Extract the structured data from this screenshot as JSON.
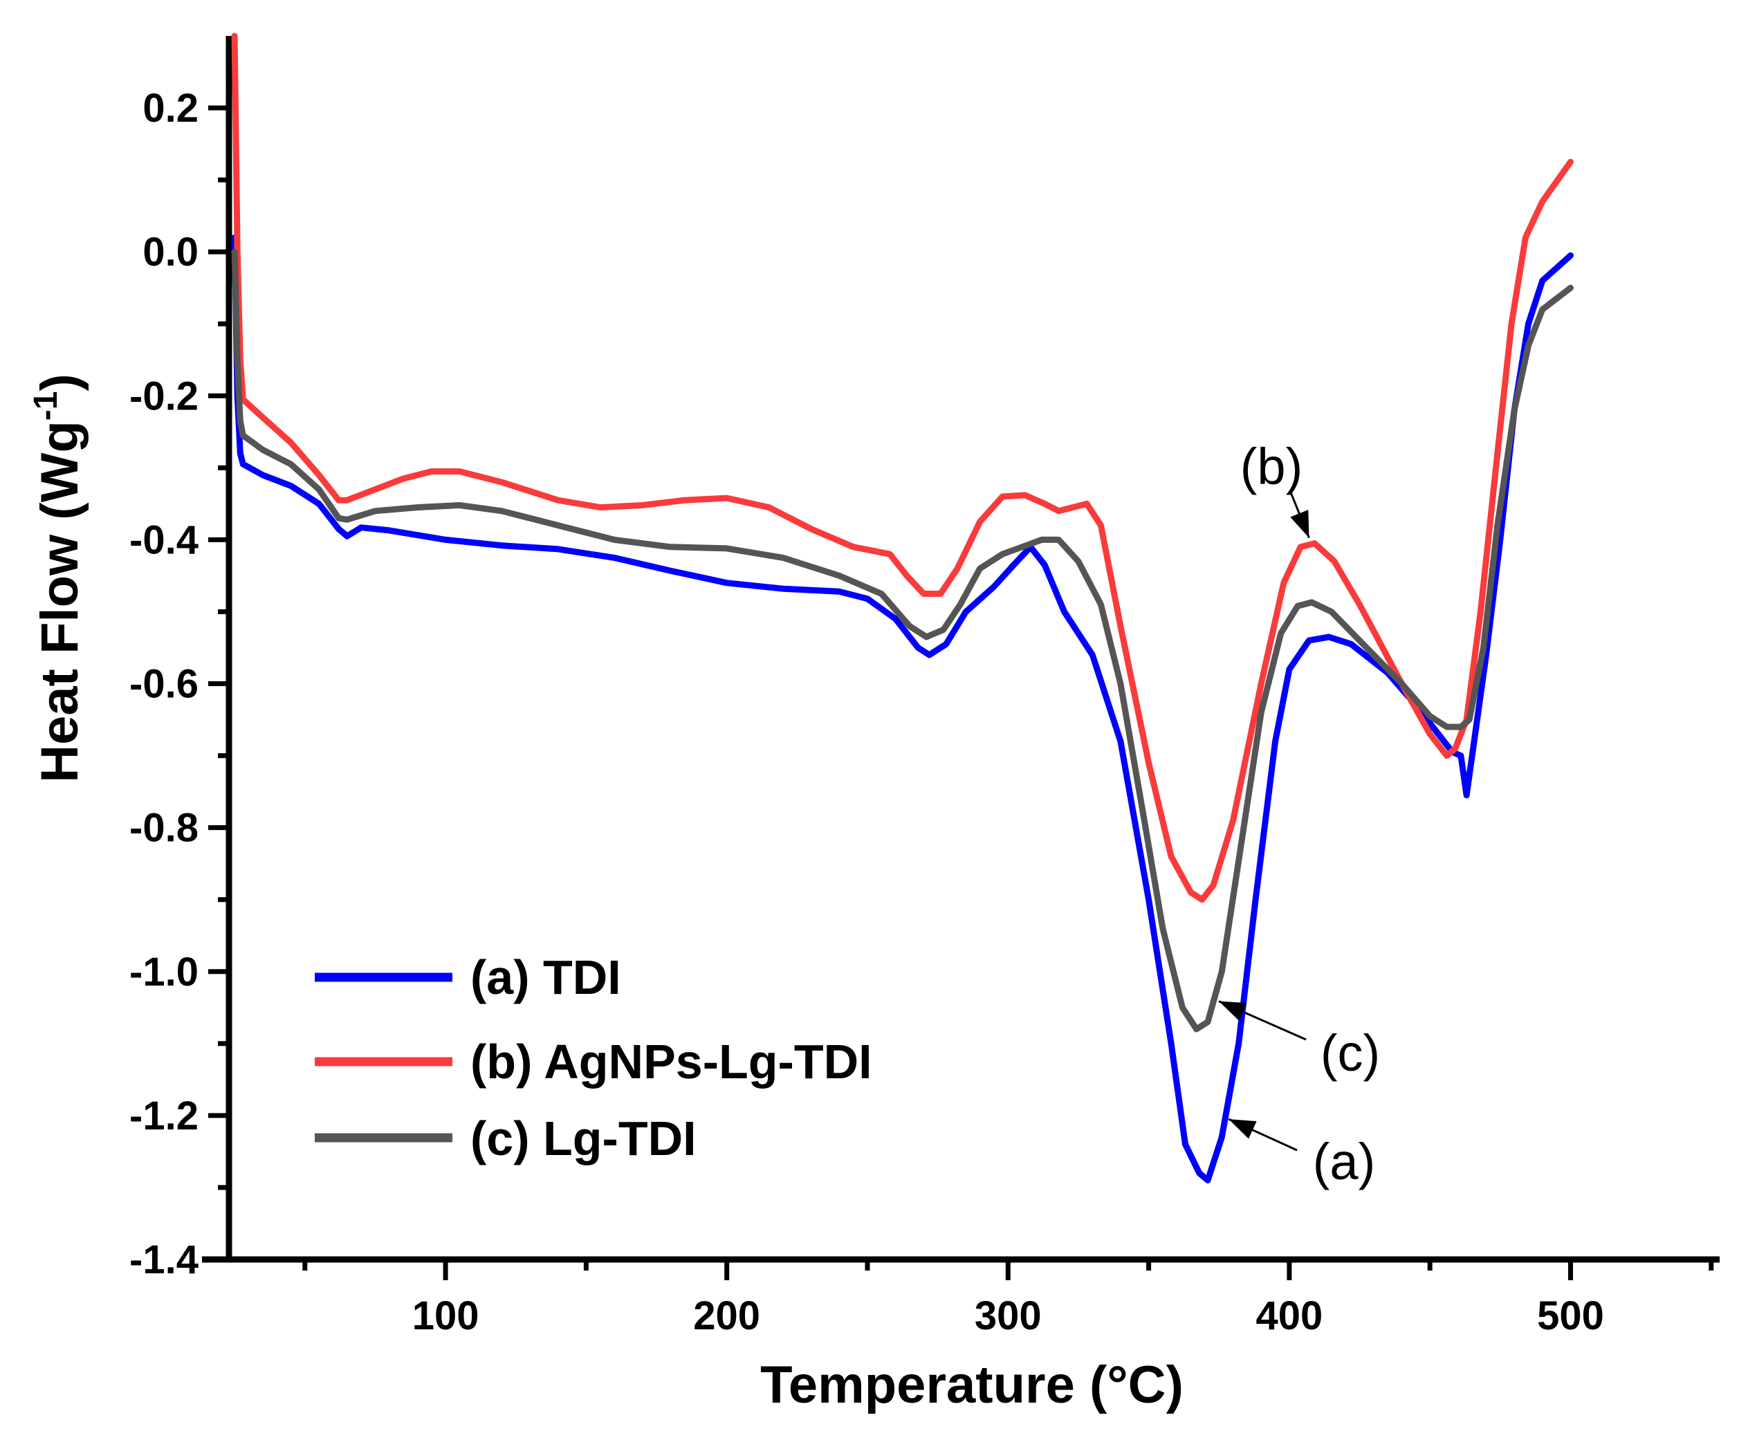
{
  "chart_data": {
    "type": "line",
    "title": "",
    "xlabel": "Temperature (°C)",
    "ylabel": "Heat Flow (Wg",
    "ylabel_sup": "-1",
    "ylabel_close": ")",
    "xlim": [
      23,
      553
    ],
    "ylim": [
      -1.4,
      0.3
    ],
    "x_ticks": [
      100,
      200,
      300,
      400,
      500
    ],
    "x_tick_labels": [
      "100",
      "200",
      "300",
      "400",
      "500"
    ],
    "y_ticks": [
      0.2,
      0.0,
      -0.2,
      -0.4,
      -0.6,
      -0.8,
      -1.0,
      -1.2,
      -1.4
    ],
    "y_tick_labels": [
      "0.2",
      "0.0",
      "-0.2",
      "-0.4",
      "-0.6",
      "-0.8",
      "-1.0",
      "-1.2",
      "-1.4"
    ],
    "grid": false,
    "legend_position": "bottom-left",
    "series": [
      {
        "name": "(a) TDI",
        "color": "#0000ff",
        "points": [
          [
            25,
            0.02
          ],
          [
            26,
            -0.2
          ],
          [
            27,
            -0.28
          ],
          [
            28,
            -0.295
          ],
          [
            35,
            -0.31
          ],
          [
            45,
            -0.325
          ],
          [
            55,
            -0.35
          ],
          [
            62,
            -0.385
          ],
          [
            65,
            -0.395
          ],
          [
            70,
            -0.383
          ],
          [
            80,
            -0.387
          ],
          [
            100,
            -0.4
          ],
          [
            120,
            -0.408
          ],
          [
            140,
            -0.413
          ],
          [
            160,
            -0.425
          ],
          [
            180,
            -0.443
          ],
          [
            200,
            -0.46
          ],
          [
            220,
            -0.468
          ],
          [
            240,
            -0.472
          ],
          [
            250,
            -0.482
          ],
          [
            260,
            -0.51
          ],
          [
            268,
            -0.55
          ],
          [
            272,
            -0.56
          ],
          [
            278,
            -0.545
          ],
          [
            285,
            -0.5
          ],
          [
            295,
            -0.465
          ],
          [
            302,
            -0.435
          ],
          [
            308,
            -0.41
          ],
          [
            313,
            -0.435
          ],
          [
            320,
            -0.5
          ],
          [
            330,
            -0.56
          ],
          [
            340,
            -0.68
          ],
          [
            350,
            -0.9
          ],
          [
            358,
            -1.1
          ],
          [
            363,
            -1.24
          ],
          [
            368,
            -1.28
          ],
          [
            371,
            -1.29
          ],
          [
            376,
            -1.23
          ],
          [
            382,
            -1.1
          ],
          [
            388,
            -0.9
          ],
          [
            395,
            -0.68
          ],
          [
            400,
            -0.58
          ],
          [
            407,
            -0.54
          ],
          [
            414,
            -0.535
          ],
          [
            422,
            -0.545
          ],
          [
            435,
            -0.585
          ],
          [
            445,
            -0.63
          ],
          [
            452,
            -0.665
          ],
          [
            458,
            -0.695
          ],
          [
            461,
            -0.7
          ],
          [
            463,
            -0.755
          ],
          [
            465,
            -0.7
          ],
          [
            470,
            -0.56
          ],
          [
            475,
            -0.4
          ],
          [
            480,
            -0.22
          ],
          [
            485,
            -0.1
          ],
          [
            490,
            -0.04
          ],
          [
            500,
            -0.005
          ]
        ]
      },
      {
        "name": "(b) AgNPs-Lg-TDI",
        "color": "#f93b3b",
        "points": [
          [
            25,
            0.3
          ],
          [
            26,
            0.0
          ],
          [
            27,
            -0.15
          ],
          [
            28,
            -0.205
          ],
          [
            35,
            -0.23
          ],
          [
            45,
            -0.265
          ],
          [
            55,
            -0.31
          ],
          [
            62,
            -0.345
          ],
          [
            65,
            -0.345
          ],
          [
            75,
            -0.33
          ],
          [
            85,
            -0.315
          ],
          [
            95,
            -0.305
          ],
          [
            105,
            -0.305
          ],
          [
            120,
            -0.32
          ],
          [
            140,
            -0.345
          ],
          [
            155,
            -0.355
          ],
          [
            170,
            -0.352
          ],
          [
            185,
            -0.345
          ],
          [
            200,
            -0.342
          ],
          [
            215,
            -0.355
          ],
          [
            230,
            -0.385
          ],
          [
            245,
            -0.41
          ],
          [
            258,
            -0.42
          ],
          [
            264,
            -0.45
          ],
          [
            270,
            -0.475
          ],
          [
            276,
            -0.475
          ],
          [
            282,
            -0.44
          ],
          [
            290,
            -0.375
          ],
          [
            298,
            -0.34
          ],
          [
            306,
            -0.338
          ],
          [
            313,
            -0.35
          ],
          [
            318,
            -0.36
          ],
          [
            323,
            -0.355
          ],
          [
            328,
            -0.35
          ],
          [
            333,
            -0.38
          ],
          [
            340,
            -0.52
          ],
          [
            350,
            -0.71
          ],
          [
            358,
            -0.84
          ],
          [
            365,
            -0.89
          ],
          [
            369,
            -0.9
          ],
          [
            373,
            -0.88
          ],
          [
            380,
            -0.79
          ],
          [
            390,
            -0.6
          ],
          [
            398,
            -0.46
          ],
          [
            404,
            -0.41
          ],
          [
            409,
            -0.405
          ],
          [
            416,
            -0.43
          ],
          [
            425,
            -0.49
          ],
          [
            440,
            -0.6
          ],
          [
            450,
            -0.67
          ],
          [
            456,
            -0.7
          ],
          [
            459,
            -0.69
          ],
          [
            463,
            -0.65
          ],
          [
            468,
            -0.5
          ],
          [
            474,
            -0.28
          ],
          [
            479,
            -0.1
          ],
          [
            484,
            0.02
          ],
          [
            490,
            0.07
          ],
          [
            500,
            0.125
          ]
        ]
      },
      {
        "name": "(c) Lg-TDI",
        "color": "#555555",
        "points": [
          [
            25,
            0.0
          ],
          [
            26,
            -0.15
          ],
          [
            27,
            -0.235
          ],
          [
            28,
            -0.255
          ],
          [
            35,
            -0.275
          ],
          [
            45,
            -0.295
          ],
          [
            55,
            -0.33
          ],
          [
            62,
            -0.37
          ],
          [
            65,
            -0.372
          ],
          [
            75,
            -0.36
          ],
          [
            90,
            -0.355
          ],
          [
            105,
            -0.352
          ],
          [
            120,
            -0.36
          ],
          [
            140,
            -0.38
          ],
          [
            160,
            -0.4
          ],
          [
            180,
            -0.41
          ],
          [
            200,
            -0.412
          ],
          [
            220,
            -0.425
          ],
          [
            240,
            -0.45
          ],
          [
            255,
            -0.475
          ],
          [
            265,
            -0.52
          ],
          [
            271,
            -0.535
          ],
          [
            277,
            -0.525
          ],
          [
            283,
            -0.49
          ],
          [
            290,
            -0.44
          ],
          [
            298,
            -0.42
          ],
          [
            305,
            -0.41
          ],
          [
            312,
            -0.4
          ],
          [
            318,
            -0.4
          ],
          [
            325,
            -0.43
          ],
          [
            333,
            -0.49
          ],
          [
            340,
            -0.6
          ],
          [
            348,
            -0.78
          ],
          [
            355,
            -0.94
          ],
          [
            362,
            -1.05
          ],
          [
            367,
            -1.08
          ],
          [
            371,
            -1.07
          ],
          [
            376,
            -1.0
          ],
          [
            383,
            -0.82
          ],
          [
            390,
            -0.64
          ],
          [
            397,
            -0.53
          ],
          [
            403,
            -0.492
          ],
          [
            408,
            -0.487
          ],
          [
            415,
            -0.5
          ],
          [
            425,
            -0.54
          ],
          [
            440,
            -0.6
          ],
          [
            450,
            -0.645
          ],
          [
            456,
            -0.66
          ],
          [
            461,
            -0.66
          ],
          [
            464,
            -0.65
          ],
          [
            469,
            -0.55
          ],
          [
            474,
            -0.38
          ],
          [
            480,
            -0.22
          ],
          [
            485,
            -0.13
          ],
          [
            490,
            -0.08
          ],
          [
            500,
            -0.05
          ]
        ]
      }
    ],
    "annotations": [
      {
        "label": "(b)",
        "series_index": 1,
        "target": [
          409,
          -0.405
        ]
      },
      {
        "label": "(c)",
        "series_index": 2,
        "target": [
          372,
          -1.045
        ]
      },
      {
        "label": "(a)",
        "series_index": 0,
        "target": [
          375,
          -1.205
        ]
      }
    ]
  }
}
